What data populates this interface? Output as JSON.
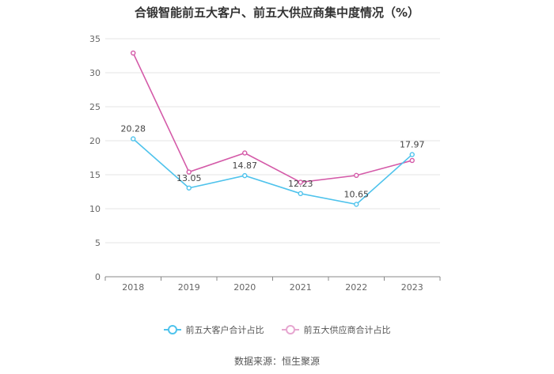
{
  "chart_data": {
    "type": "line",
    "title": "合锻智能前五大客户、前五大供应商集中度情况（%）",
    "categories": [
      "2018",
      "2019",
      "2020",
      "2021",
      "2022",
      "2023"
    ],
    "series": [
      {
        "name": "前五大客户合计占比",
        "values": [
          20.28,
          13.05,
          14.87,
          12.23,
          10.65,
          17.97
        ],
        "color": "#4fc3ec",
        "show_labels": true
      },
      {
        "name": "前五大供应商合计占比",
        "values": [
          32.9,
          15.4,
          18.2,
          13.9,
          14.9,
          17.1
        ],
        "color": "#d45aa8",
        "show_labels": false
      }
    ],
    "ylim": [
      0,
      35
    ],
    "yticks": [
      0,
      5,
      10,
      15,
      20,
      25,
      30,
      35
    ],
    "grid": true,
    "legend_position": "bottom"
  },
  "source": "数据来源：恒生聚源"
}
